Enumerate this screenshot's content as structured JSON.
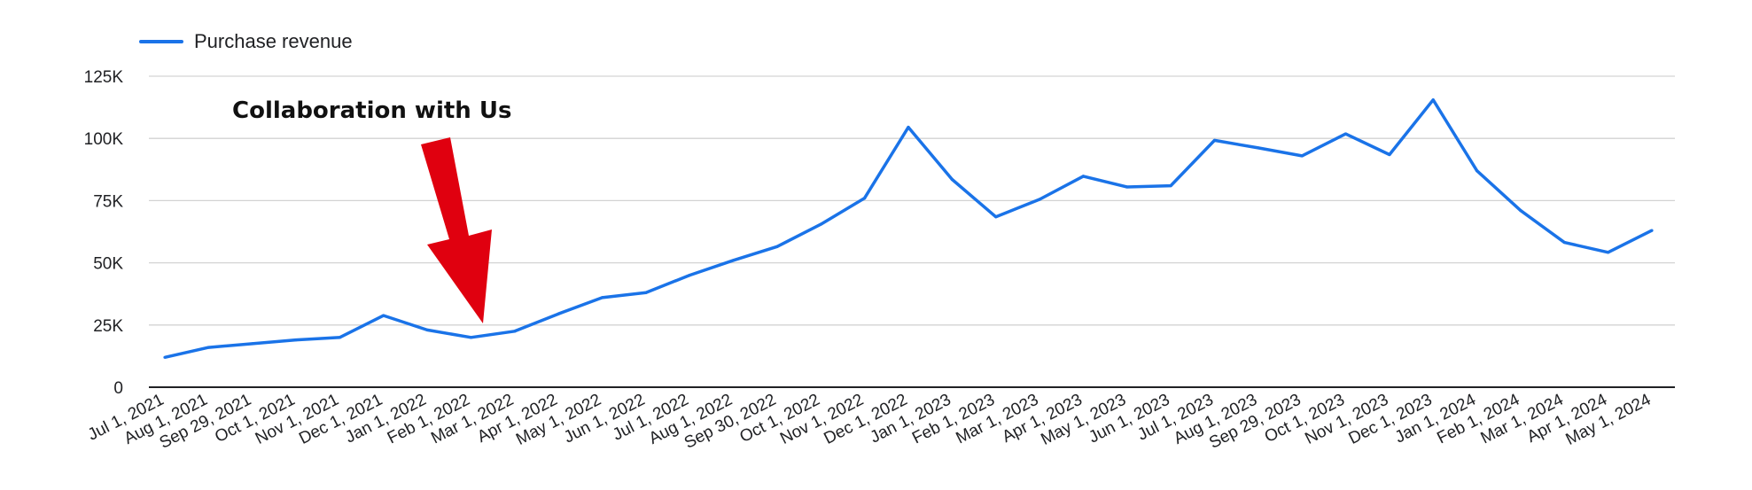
{
  "legend": {
    "label": "Purchase revenue",
    "color": "#1a73e8"
  },
  "annotation": {
    "text": "Collaboration with Us",
    "arrow_color": "#e0000f",
    "points_to": "Feb 1, 2022"
  },
  "chart_data": {
    "type": "line",
    "x": [
      "Jul 1, 2021",
      "Aug 1, 2021",
      "Sep 29, 2021",
      "Oct 1, 2021",
      "Nov 1, 2021",
      "Dec 1, 2021",
      "Jan 1, 2022",
      "Feb 1, 2022",
      "Mar 1, 2022",
      "Apr 1, 2022",
      "May 1, 2022",
      "Jun 1, 2022",
      "Jul 1, 2022",
      "Aug 1, 2022",
      "Sep 30, 2022",
      "Oct 1, 2022",
      "Nov 1, 2022",
      "Dec 1, 2022",
      "Jan 1, 2023",
      "Feb 1, 2023",
      "Mar 1, 2023",
      "Apr 1, 2023",
      "May 1, 2023",
      "Jun 1, 2023",
      "Jul 1, 2023",
      "Aug 1, 2023",
      "Sep 29, 2023",
      "Oct 1, 2023",
      "Nov 1, 2023",
      "Dec 1, 2023",
      "Jan 1, 2024",
      "Feb 1, 2024",
      "Mar 1, 2024",
      "Apr 1, 2024",
      "May 1, 2024"
    ],
    "series": [
      {
        "name": "Purchase revenue",
        "color": "#1a73e8",
        "values": [
          12000,
          16000,
          17500,
          19000,
          20000,
          28800,
          23000,
          20000,
          22500,
          29500,
          36000,
          38000,
          45000,
          51000,
          56500,
          65500,
          76000,
          104500,
          83500,
          68500,
          75500,
          84800,
          80500,
          81000,
          99200,
          96200,
          93000,
          101800,
          93500,
          115500,
          87000,
          71000,
          58200,
          54200,
          63000
        ]
      }
    ],
    "ylim": [
      0,
      125000
    ],
    "yticks": [
      0,
      25000,
      50000,
      75000,
      100000,
      125000
    ],
    "ytick_labels": [
      "0",
      "25K",
      "50K",
      "75K",
      "100K",
      "125K"
    ],
    "grid": true,
    "legend_position": "top-left",
    "title": "",
    "xlabel": "",
    "ylabel": ""
  }
}
